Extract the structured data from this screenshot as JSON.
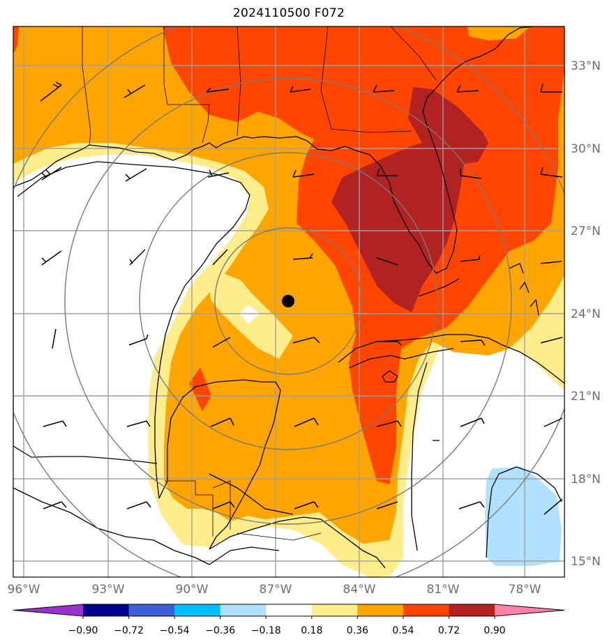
{
  "title": "2024110500 F072",
  "colors": {
    "bg": "#ffffff",
    "frame": "#000000",
    "grid": "#a0a0a0",
    "coast": "#000000",
    "ring": "#7a7a7a",
    "marker": "#000000"
  },
  "axes": {
    "lat_labels": [
      "33°N",
      "30°N",
      "27°N",
      "24°N",
      "21°N",
      "18°N",
      "15°N"
    ],
    "lon_labels": [
      "96°W",
      "93°W",
      "90°W",
      "87°W",
      "84°W",
      "81°W",
      "78°W"
    ]
  },
  "colorbar": {
    "colors": [
      "#9932cc",
      "#00008b",
      "#3d5fd6",
      "#00bfff",
      "#b0e2ff",
      "#ffffff",
      "#ffec8b",
      "#ffa500",
      "#ff4500",
      "#b22222",
      "#ff82ab"
    ],
    "tick_labels": [
      "−0.90",
      "−0.72",
      "−0.54",
      "−0.36",
      "−0.18",
      "0.18",
      "0.36",
      "0.54",
      "0.72",
      "0.90"
    ]
  },
  "map_data": {
    "field_levels": [
      -0.9,
      -0.72,
      -0.54,
      -0.36,
      -0.18,
      0.18,
      0.36,
      0.54,
      0.72,
      0.9
    ],
    "storm_center": {
      "lat": 24.4,
      "lon": -86.7
    },
    "range_rings": 4,
    "extent": {
      "lon_min": -96.0,
      "lon_max": -76.5,
      "lat_min": 14.5,
      "lat_max": 34.5
    }
  }
}
